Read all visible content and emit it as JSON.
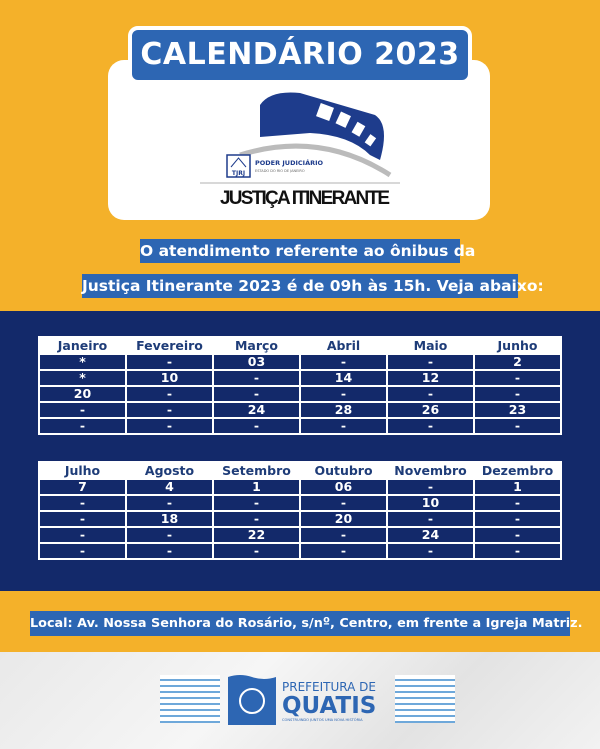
{
  "header": {
    "title": "CALENDÁRIO 2023"
  },
  "logo": {
    "org_line1": "PODER JUDICIÁRIO",
    "org_line2": "ESTADO DO RIO DE JANEIRO",
    "emblem": "TJRJ",
    "program": "JUSTIÇA ITINERANTE",
    "icon": "bus-icon"
  },
  "intro": {
    "line1": "O atendimento referente ao ônibus da",
    "line2": "Justiça Itinerante 2023 é de 09h às 15h. Veja abaixo:"
  },
  "tables": [
    {
      "months": [
        "Janeiro",
        "Fevereiro",
        "Março",
        "Abril",
        "Maio",
        "Junho"
      ],
      "rows": [
        [
          "*",
          "-",
          "03",
          "-",
          "-",
          "2"
        ],
        [
          "*",
          "10",
          "-",
          "14",
          "12",
          "-"
        ],
        [
          "20",
          "-",
          "-",
          "-",
          "-",
          "-"
        ],
        [
          "-",
          "-",
          "24",
          "28",
          "26",
          "23"
        ],
        [
          "-",
          "-",
          "-",
          "-",
          "-",
          "-"
        ]
      ]
    },
    {
      "months": [
        "Julho",
        "Agosto",
        "Setembro",
        "Outubro",
        "Novembro",
        "Dezembro"
      ],
      "rows": [
        [
          "7",
          "4",
          "1",
          "06",
          "-",
          "1"
        ],
        [
          "-",
          "-",
          "-",
          "-",
          "10",
          "-"
        ],
        [
          "-",
          "18",
          "-",
          "20",
          "-",
          "-"
        ],
        [
          "-",
          "-",
          "22",
          "-",
          "24",
          "-"
        ],
        [
          "-",
          "-",
          "-",
          "-",
          "-",
          "-"
        ]
      ]
    }
  ],
  "location": "Local: Av. Nossa Senhora do Rosário, s/nº, Centro, em frente a Igreja Matriz.",
  "footer": {
    "line1": "PREFEITURA DE",
    "line2": "QUATIS",
    "tagline": "CONSTRUINDO JUNTOS UMA NOVA HISTÓRIA"
  },
  "colors": {
    "yellow": "#F4B12A",
    "navy": "#13296A",
    "blue": "#2D66B3"
  }
}
